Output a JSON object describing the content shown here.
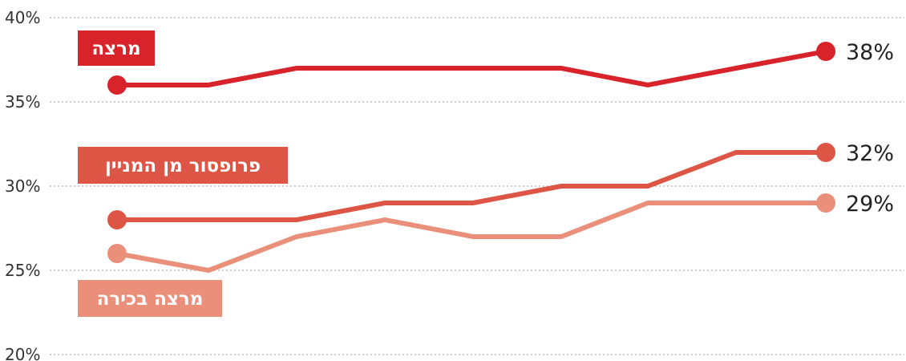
{
  "chart_data": {
    "type": "line",
    "x": [
      1,
      2,
      3,
      4,
      5,
      6,
      7,
      8,
      9
    ],
    "yticks": [
      "20%",
      "25%",
      "30%",
      "35%",
      "40%"
    ],
    "ylim": [
      20,
      40
    ],
    "grid": true,
    "series": [
      {
        "name": "מרצה",
        "values": [
          36,
          36,
          37,
          37,
          37,
          37,
          36,
          37,
          38
        ],
        "end_label": "38%",
        "color": "#d8232a"
      },
      {
        "name": "פרופסור מן המניין",
        "values": [
          28,
          28,
          28,
          29,
          29,
          30,
          30,
          32,
          32
        ],
        "end_label": "32%",
        "color": "#dc5545"
      },
      {
        "name": "מרצה בכירה",
        "values": [
          26,
          25,
          27,
          28,
          27,
          27,
          29,
          29,
          29
        ],
        "end_label": "29%",
        "color": "#ea8f7a"
      }
    ]
  }
}
